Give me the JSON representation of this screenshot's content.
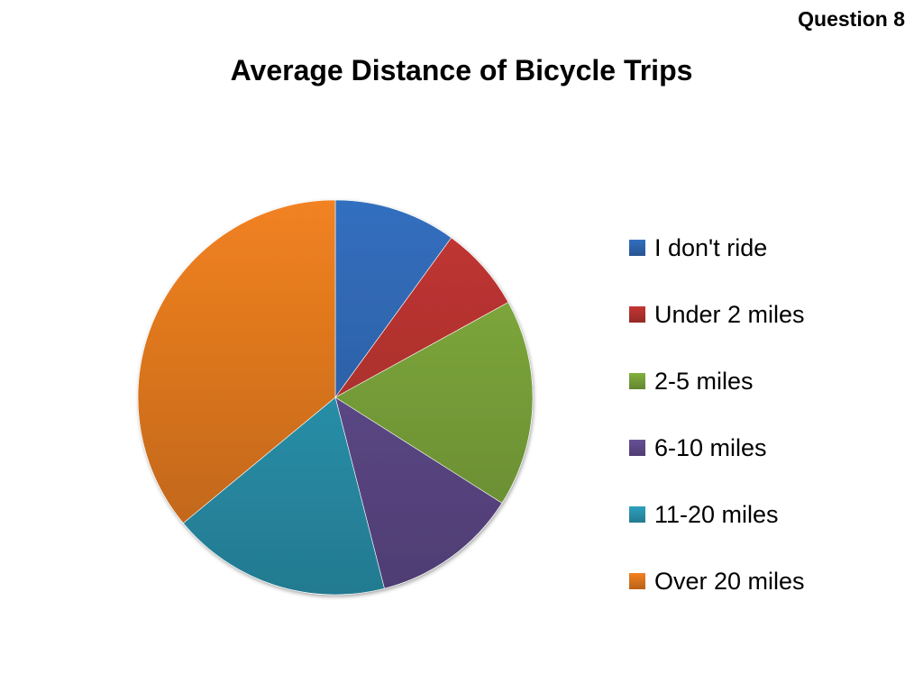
{
  "header": {
    "question_label": "Question 8"
  },
  "chart_data": {
    "type": "pie",
    "title": "Average Distance of Bicycle Trips",
    "start_angle_deg": 0,
    "direction": "clockwise",
    "legend_position": "right",
    "categories": [
      "I don't ride",
      "Under 2 miles",
      "2-5 miles",
      "6-10 miles",
      "11-20 miles",
      "Over 20 miles"
    ],
    "values": [
      10,
      7,
      17,
      12,
      18,
      36
    ],
    "colors": [
      "#2F67B1",
      "#B5322F",
      "#7AA33A",
      "#5F4A8B",
      "#2B95B0",
      "#E0781F"
    ]
  }
}
